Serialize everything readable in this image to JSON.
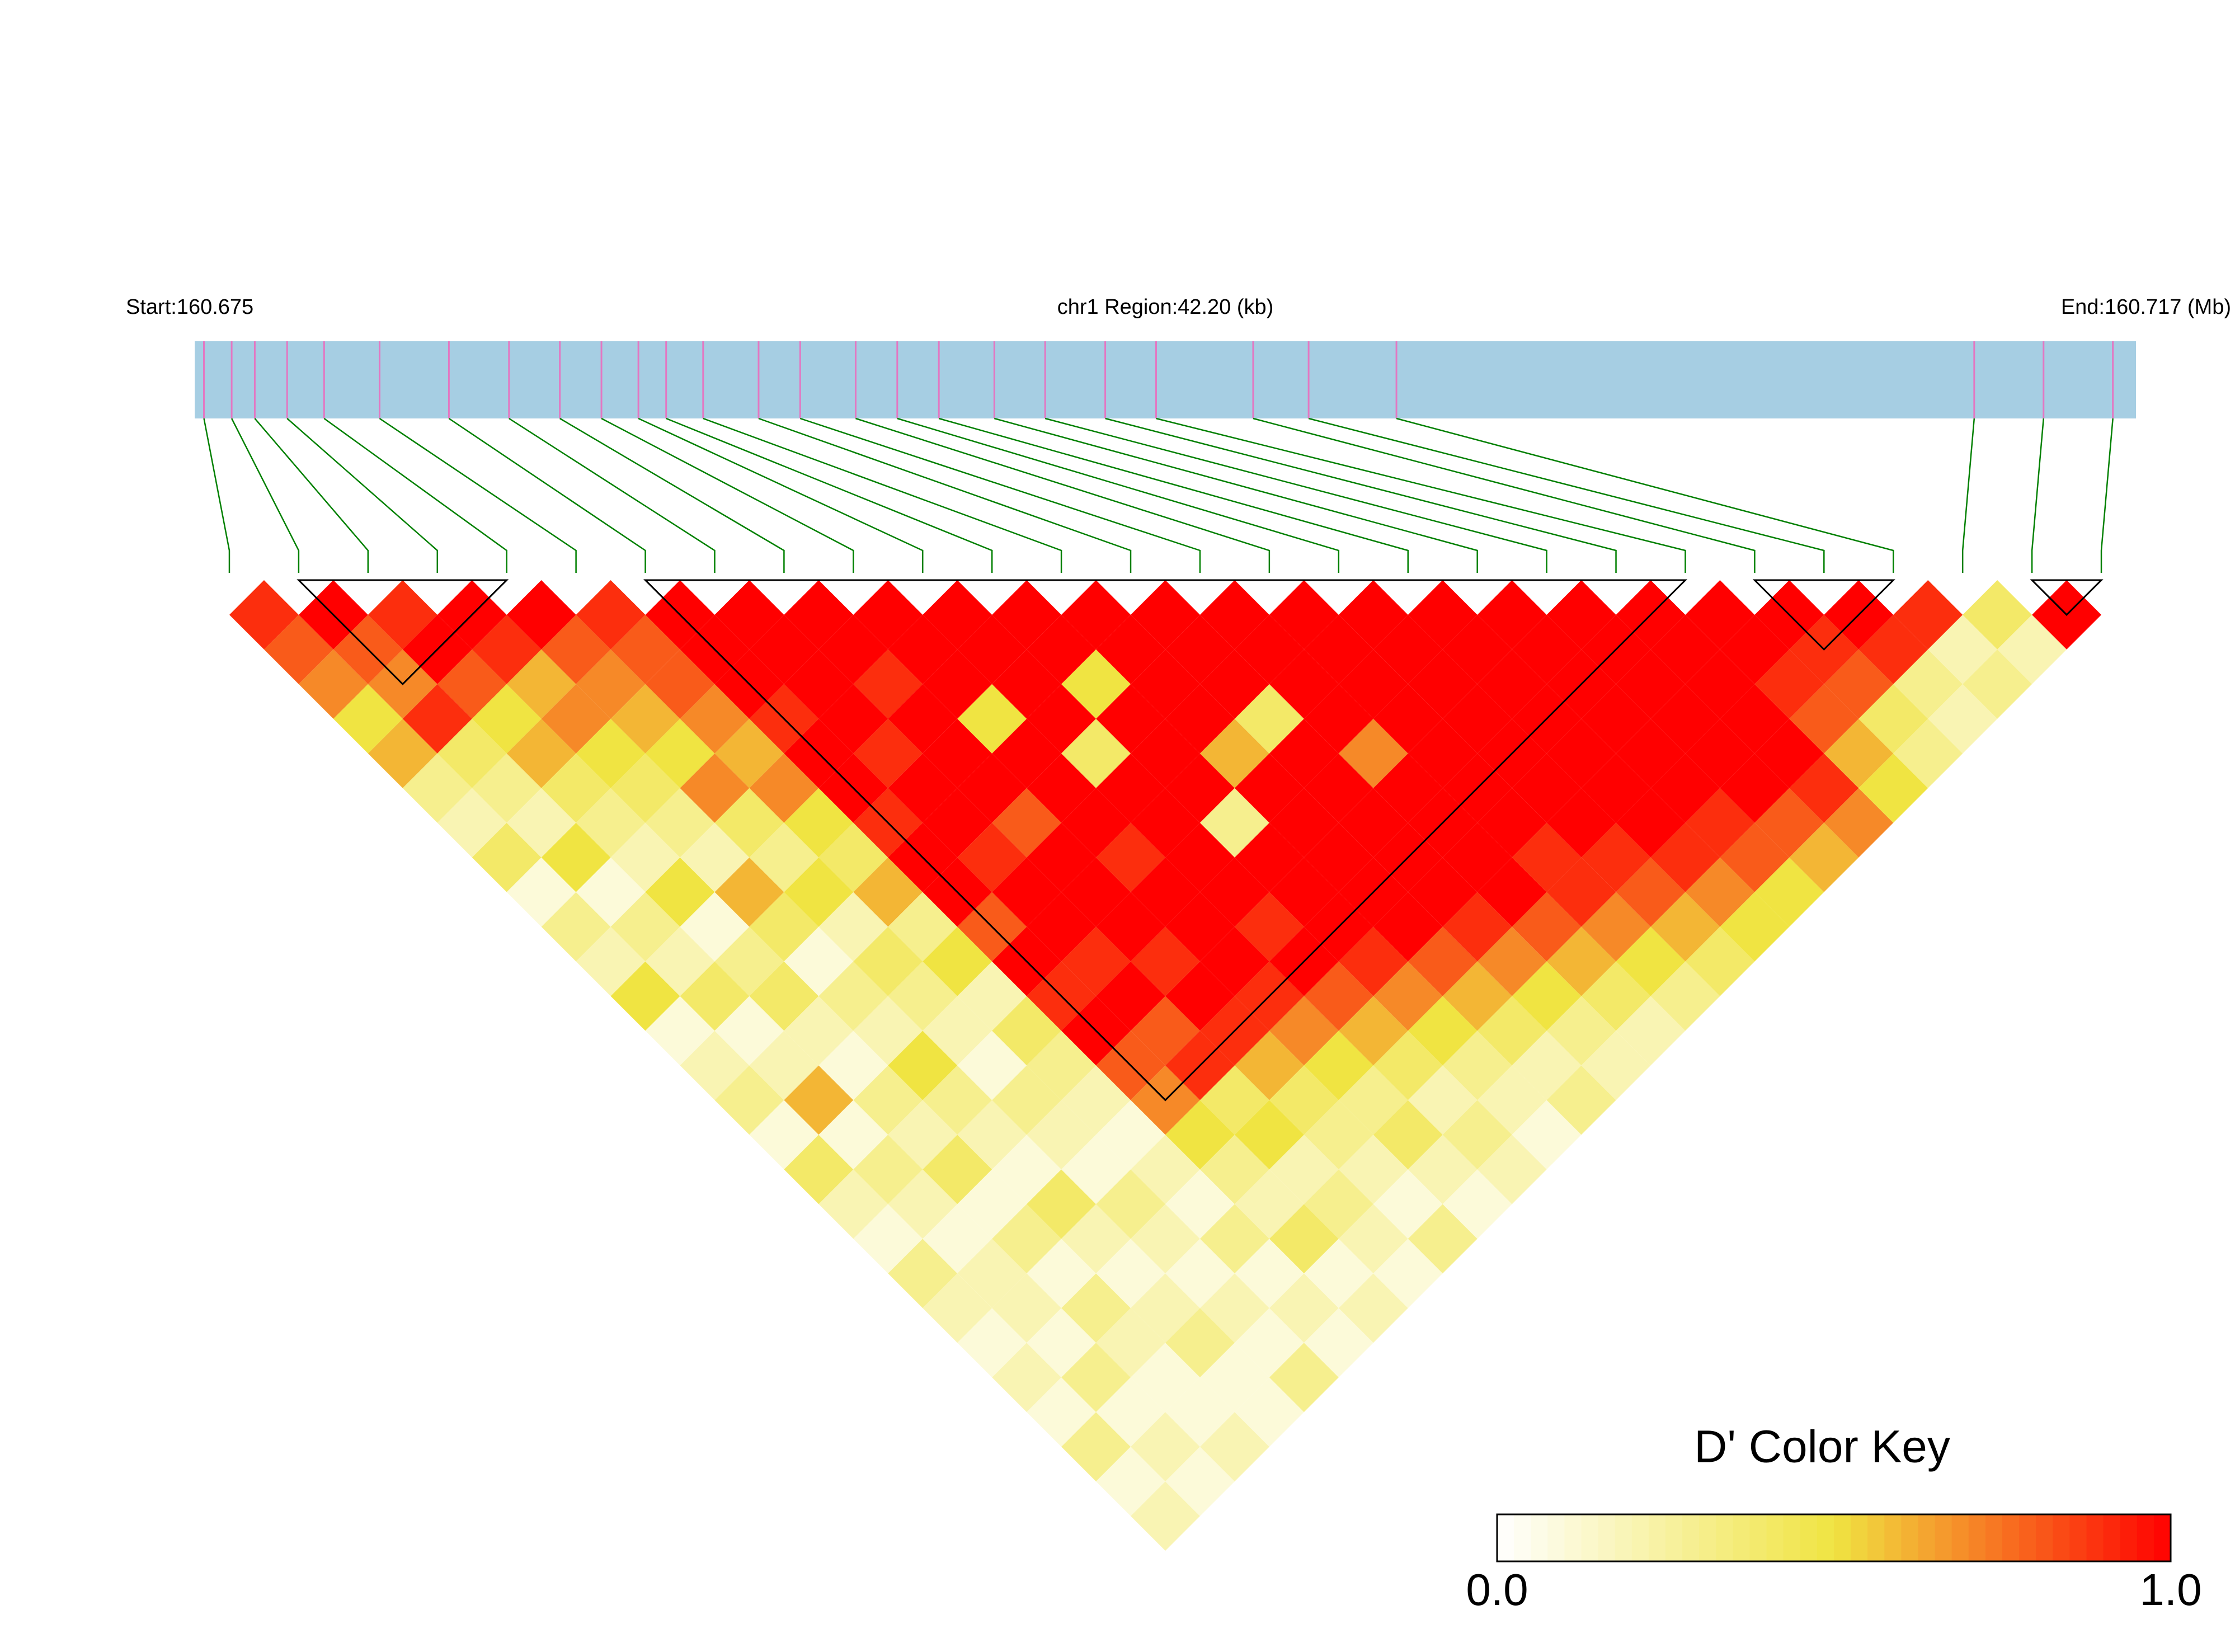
{
  "chart_data": {
    "type": "ld-heatmap",
    "start_label": "Start:160.675",
    "region_label": "chr1 Region:42.20 (kb)",
    "end_label": "End:160.717 (Mb)",
    "xlim": [
      160.675,
      160.717
    ],
    "positions": [
      160.6752,
      160.6758,
      160.6763,
      160.677,
      160.6778,
      160.679,
      160.6805,
      160.6818,
      160.6829,
      160.6838,
      160.6846,
      160.6852,
      160.686,
      160.6872,
      160.6881,
      160.6893,
      160.6902,
      160.6911,
      160.6923,
      160.6934,
      160.6947,
      160.6958,
      160.6979,
      160.6991,
      160.701,
      160.7135,
      160.715,
      160.7165
    ],
    "ld": [
      [
        0.9,
        0.8,
        0.7,
        0.5,
        0.6,
        0.3,
        0.2,
        0.4,
        0.1,
        0.3,
        0.2,
        0.5,
        0.1,
        0.2,
        0.3,
        0.1,
        0.4,
        0.2,
        0.1,
        0.3,
        0.2,
        0.1,
        0.2,
        0.1,
        0.3,
        0.1,
        0.2
      ],
      [
        1,
        0.8,
        0.7,
        0.9,
        0.4,
        0.3,
        0.2,
        0.5,
        0.1,
        0.3,
        0.2,
        0.4,
        0.1,
        0.2,
        0.6,
        0.1,
        0.3,
        0.2,
        0.1,
        0.2,
        0.2,
        0.1,
        0.3,
        0.1,
        0.2,
        0.1
      ],
      [
        0.9,
        1,
        0.8,
        0.5,
        0.6,
        0.4,
        0.3,
        0.2,
        0.5,
        0.1,
        0.3,
        0.4,
        0.2,
        0.1,
        0.3,
        0.2,
        0.4,
        0.1,
        0.3,
        0.1,
        0.3,
        0.2,
        0.1,
        0.1,
        0.2
      ],
      [
        1,
        0.9,
        0.6,
        0.7,
        0.5,
        0.4,
        0.3,
        0.2,
        0.6,
        0.4,
        0.1,
        0.3,
        0.2,
        0.5,
        0.3,
        0.2,
        0.1,
        0.4,
        0.2,
        0.1,
        0.2,
        0.3,
        0.1,
        0.1
      ],
      [
        1,
        0.8,
        0.7,
        0.6,
        0.5,
        0.7,
        0.4,
        0.3,
        0.5,
        0.2,
        0.4,
        0.3,
        0.2,
        0.1,
        0.3,
        0.2,
        0.1,
        0.3,
        0.2,
        0.1,
        0.2,
        0.1,
        0.3
      ],
      [
        0.9,
        0.8,
        0.8,
        0.7,
        0.6,
        0.7,
        0.5,
        0.4,
        0.6,
        0.3,
        0.5,
        0.2,
        0.4,
        0.3,
        0.2,
        0.1,
        0.2,
        0.1,
        0.3,
        0.1,
        0.2,
        0.1
      ],
      [
        1,
        1,
        1,
        0.9,
        1,
        1,
        0.9,
        1,
        1,
        0.8,
        1,
        0.9,
        1,
        0.8,
        0.7,
        0.5,
        0.3,
        0.2,
        0.4,
        0.1,
        0.2
      ],
      [
        1,
        1,
        1,
        1,
        0.9,
        1,
        1,
        0.9,
        1,
        1,
        0.9,
        1,
        0.8,
        0.9,
        0.4,
        0.5,
        0.2,
        0.3,
        0.2,
        0.1
      ],
      [
        1,
        1,
        0.9,
        1,
        1,
        1,
        0.8,
        1,
        1,
        1,
        0.9,
        1,
        0.9,
        0.6,
        0.4,
        0.3,
        0.2,
        0.1,
        0.3
      ],
      [
        1,
        1,
        1,
        0.5,
        1,
        1,
        1,
        0.9,
        1,
        1,
        1,
        0.9,
        0.7,
        0.5,
        0.3,
        0.4,
        0.2,
        0.1
      ],
      [
        1,
        1,
        1,
        1,
        0.4,
        1,
        1,
        1,
        1,
        0.9,
        1,
        0.8,
        0.6,
        0.4,
        0.2,
        0.3,
        0.2
      ],
      [
        1,
        1,
        0.5,
        1,
        1,
        1,
        0.3,
        1,
        1,
        1,
        0.9,
        0.7,
        0.5,
        0.3,
        0.2,
        0.1
      ],
      [
        1,
        1,
        1,
        1,
        0.6,
        1,
        1,
        1,
        1,
        1,
        0.8,
        0.6,
        0.4,
        0.2,
        0.3
      ],
      [
        1,
        1,
        1,
        0.4,
        1,
        1,
        1,
        1,
        1,
        0.9,
        0.7,
        0.5,
        0.3,
        0.2
      ],
      [
        1,
        1,
        1,
        1,
        0.7,
        1,
        1,
        1,
        1,
        0.8,
        0.6,
        0.4,
        0.2
      ],
      [
        1,
        1,
        1,
        1,
        1,
        1,
        1,
        0.9,
        0.9,
        0.7,
        0.5,
        0.3
      ],
      [
        1,
        1,
        1,
        1,
        1,
        1,
        1,
        0.9,
        0.8,
        0.6,
        0.4
      ],
      [
        1,
        1,
        1,
        1,
        1,
        1,
        1,
        0.9,
        0.7,
        0.5
      ],
      [
        1,
        1,
        1,
        1,
        1,
        1,
        0.9,
        0.8,
        0.5
      ],
      [
        1,
        1,
        1,
        1,
        1,
        1,
        0.8,
        0.6
      ],
      [
        1,
        1,
        1,
        1,
        1,
        0.9,
        0.7
      ],
      [
        1,
        1,
        0.9,
        0.8,
        0.6,
        0.5
      ],
      [
        1,
        0.9,
        0.8,
        0.4,
        0.3
      ],
      [
        1,
        0.9,
        0.3,
        0.2
      ],
      [
        0.9,
        0.2,
        0.3
      ],
      [
        0.4,
        0.2
      ],
      [
        1
      ]
    ],
    "blocks": [
      [
        1,
        4
      ],
      [
        6,
        21
      ],
      [
        22,
        24
      ],
      [
        26,
        27
      ]
    ],
    "bar_color": "#a6cee3",
    "snp_color": "#e377c2",
    "link_color": "#008000",
    "block_color": "#000000",
    "colormap": [
      "#ffffff",
      "#f0e442",
      "#ff0000"
    ],
    "color_key": {
      "title": "D' Color Key",
      "zlim": [
        0,
        1
      ],
      "ticks": [
        {
          "value": 0,
          "label": "0.0"
        },
        {
          "value": 1,
          "label": "1.0"
        }
      ]
    }
  }
}
